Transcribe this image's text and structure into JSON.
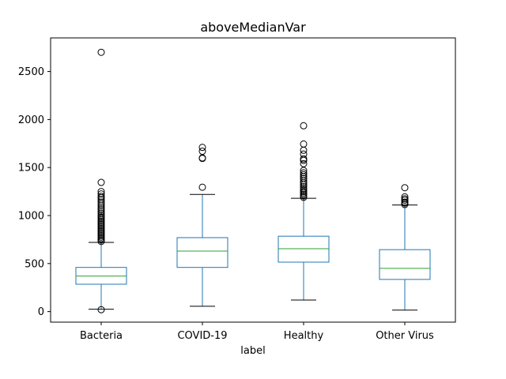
{
  "chart_data": {
    "type": "box",
    "title": "aboveMedianVar",
    "xlabel": "label",
    "ylabel": "",
    "ylim": [
      -110,
      2850
    ],
    "yticks": [
      0,
      500,
      1000,
      1500,
      2000,
      2500
    ],
    "grid": false,
    "colors": {
      "box": "#1f77b4",
      "median": "#2ca02c",
      "whisker": "#1f77b4",
      "cap": "#000000",
      "flier": "#000000"
    },
    "categories": [
      "Bacteria",
      "COVID-19",
      "Healthy",
      "Other Virus"
    ],
    "boxes": [
      {
        "category": "Bacteria",
        "q1": 285,
        "median": 370,
        "q3": 460,
        "whisker_low": 25,
        "whisker_high": 720,
        "fliers": [
          2700,
          1345,
          1250,
          1225,
          1200,
          1185,
          1165,
          1140,
          1120,
          1100,
          1080,
          1060,
          1040,
          1020,
          1000,
          985,
          970,
          955,
          940,
          925,
          910,
          895,
          880,
          865,
          850,
          835,
          820,
          805,
          790,
          775,
          760,
          745,
          730,
          20
        ]
      },
      {
        "category": "COVID-19",
        "q1": 460,
        "median": 630,
        "q3": 770,
        "whisker_low": 55,
        "whisker_high": 1220,
        "fliers": [
          1710,
          1670,
          1600,
          1595,
          1295
        ]
      },
      {
        "category": "Healthy",
        "q1": 515,
        "median": 655,
        "q3": 785,
        "whisker_low": 120,
        "whisker_high": 1180,
        "fliers": [
          1935,
          1745,
          1680,
          1640,
          1590,
          1575,
          1540,
          1470,
          1445,
          1425,
          1405,
          1385,
          1360,
          1340,
          1320,
          1300,
          1280,
          1265,
          1250,
          1235,
          1220,
          1205,
          1190
        ]
      },
      {
        "category": "Other Virus",
        "q1": 335,
        "median": 450,
        "q3": 645,
        "whisker_low": 15,
        "whisker_high": 1110,
        "fliers": [
          1290,
          1195,
          1175,
          1160,
          1140,
          1130,
          1115
        ]
      }
    ]
  }
}
